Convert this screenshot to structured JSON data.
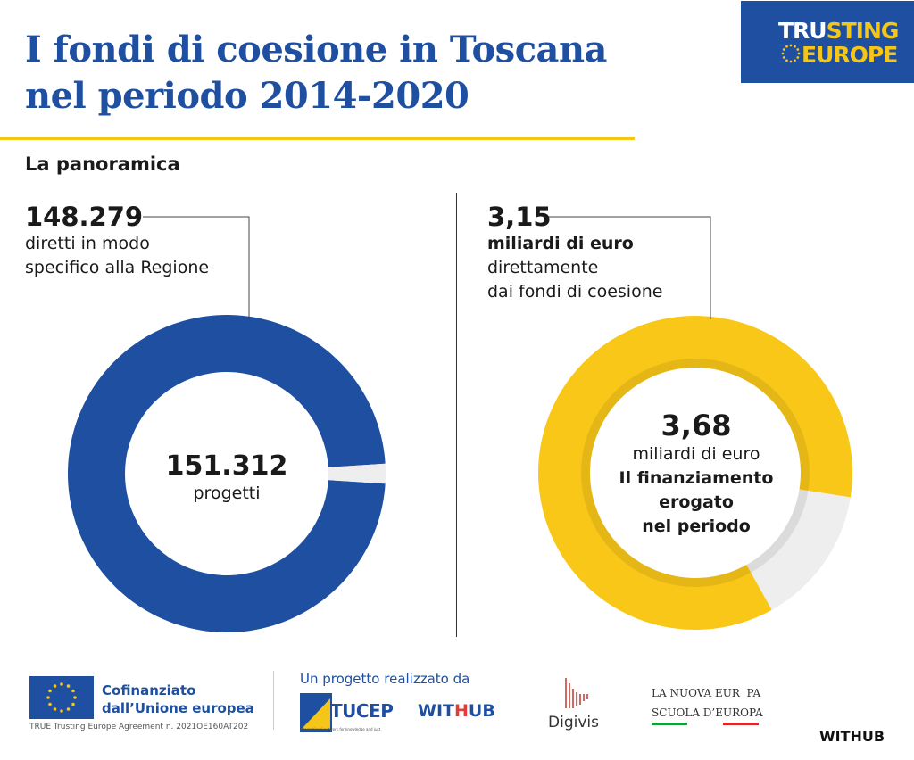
{
  "header": {
    "title_line1": "I fondi di coesione in Toscana",
    "title_line2": "nel periodo 2014-2020",
    "brand_line1_a": "TRU",
    "brand_line1_b": "STING",
    "brand_line2_a": "E",
    "brand_line2_b": "UROPE"
  },
  "section": {
    "title": "La panoramica"
  },
  "chart_data": [
    {
      "type": "pie",
      "donut": true,
      "slices": [
        {
          "label": "diretti in modo specifico alla Regione",
          "value": 148279,
          "color": "#1e4fa0"
        },
        {
          "label": "",
          "value": 3033,
          "color": "#eeeeee"
        }
      ],
      "total": 151312,
      "center_value": "151.312",
      "center_label": "progetti",
      "callout_value": "148.279",
      "callout_line1": "diretti in modo",
      "callout_line2": "specifico alla Regione"
    },
    {
      "type": "pie",
      "donut": true,
      "slices": [
        {
          "label": "miliardi di euro direttamente dai fondi di coesione",
          "value": 3.15,
          "color": "#f9c718"
        },
        {
          "label": "",
          "value": 0.53,
          "color": "#eeeeee"
        }
      ],
      "total": 3.68,
      "center_value": "3,68",
      "center_label1": "miliardi di euro",
      "center_label2": "Il finanziamento",
      "center_label3": "erogato",
      "center_label4": "nel periodo",
      "callout_value": "3,15",
      "callout_line1": "miliardi di euro",
      "callout_line2": "direttamente",
      "callout_line3": "dai fondi di coesione"
    }
  ],
  "footer": {
    "eu_line1": "Cofinanziato",
    "eu_line2": "dall’Unione europea",
    "agreement": "TRUE Trusting Europe Agreement n. 2021OE160AT202",
    "project_label": "Un progetto realizzato da",
    "tucep": "TUCEP",
    "tucep_sub": "International network for knowledge and just",
    "withub_a": "WIT",
    "withub_b": "H",
    "withub_c": "UB",
    "digivis": "Digivis",
    "lne_line1": "LA NUOVA EUR  PA",
    "lne_line2": "SCUOLA D’EUROPA",
    "withub_bottom": "WITHUB"
  },
  "colors": {
    "primary": "#1e4fa0",
    "accent": "#f5c518",
    "gray": "#eeeeee"
  }
}
